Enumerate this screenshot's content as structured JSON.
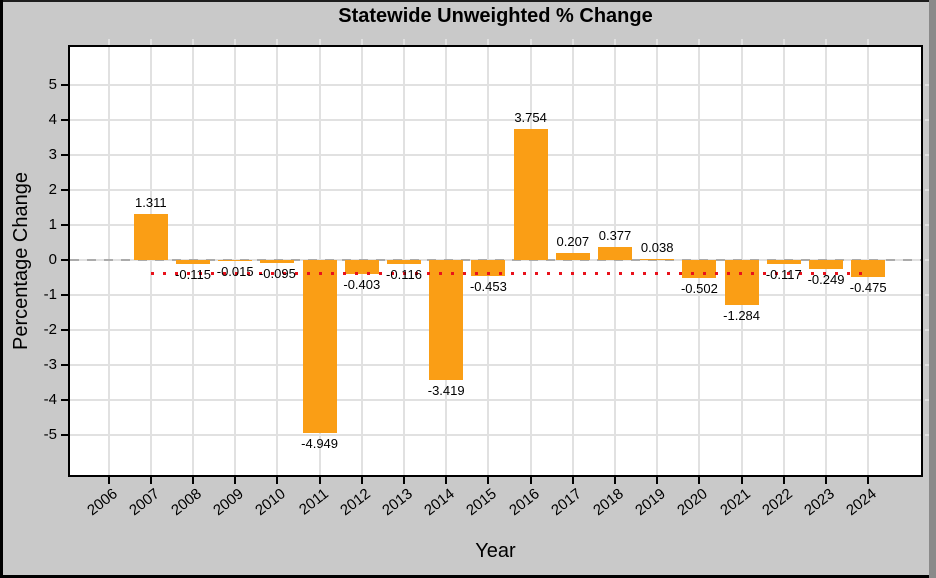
{
  "chart_data": {
    "type": "bar",
    "title": "Statewide Unweighted % Change",
    "xlabel": "Year",
    "ylabel": "Percentage Change",
    "categories": [
      "2006",
      "2007",
      "2008",
      "2009",
      "2010",
      "2011",
      "2012",
      "2013",
      "2014",
      "2015",
      "2016",
      "2017",
      "2018",
      "2019",
      "2020",
      "2021",
      "2022",
      "2023",
      "2024"
    ],
    "values": [
      null,
      1.311,
      -0.115,
      -0.015,
      -0.095,
      -4.949,
      -0.403,
      -0.116,
      -3.419,
      -0.453,
      3.754,
      0.207,
      0.377,
      0.038,
      -0.502,
      -1.284,
      -0.117,
      -0.249,
      -0.475
    ],
    "bar_labels": [
      null,
      "1.311",
      "-0.115",
      "-0.015",
      "-0.095",
      "-4.949",
      "-0.403",
      "-0.116",
      "-3.419",
      "-0.453",
      "3.754",
      "0.207",
      "0.377",
      "0.038",
      "-0.502",
      "-1.284",
      "-0.117",
      "-0.249",
      "-0.475"
    ],
    "yticks": [
      5,
      4,
      3,
      2,
      1,
      0,
      -1,
      -2,
      -3,
      -4,
      -5
    ],
    "ylim": [
      -6.1,
      6.1
    ],
    "grid": true,
    "legend": "none",
    "bar_color": "#FA9E15",
    "zero_line": {
      "value": 0,
      "color": "#ABABAB",
      "style": "dashed"
    },
    "reference_line": {
      "value": -0.361,
      "color": "#E8121C",
      "style": "dotted",
      "span_categories": [
        "2007",
        "2024"
      ]
    }
  }
}
